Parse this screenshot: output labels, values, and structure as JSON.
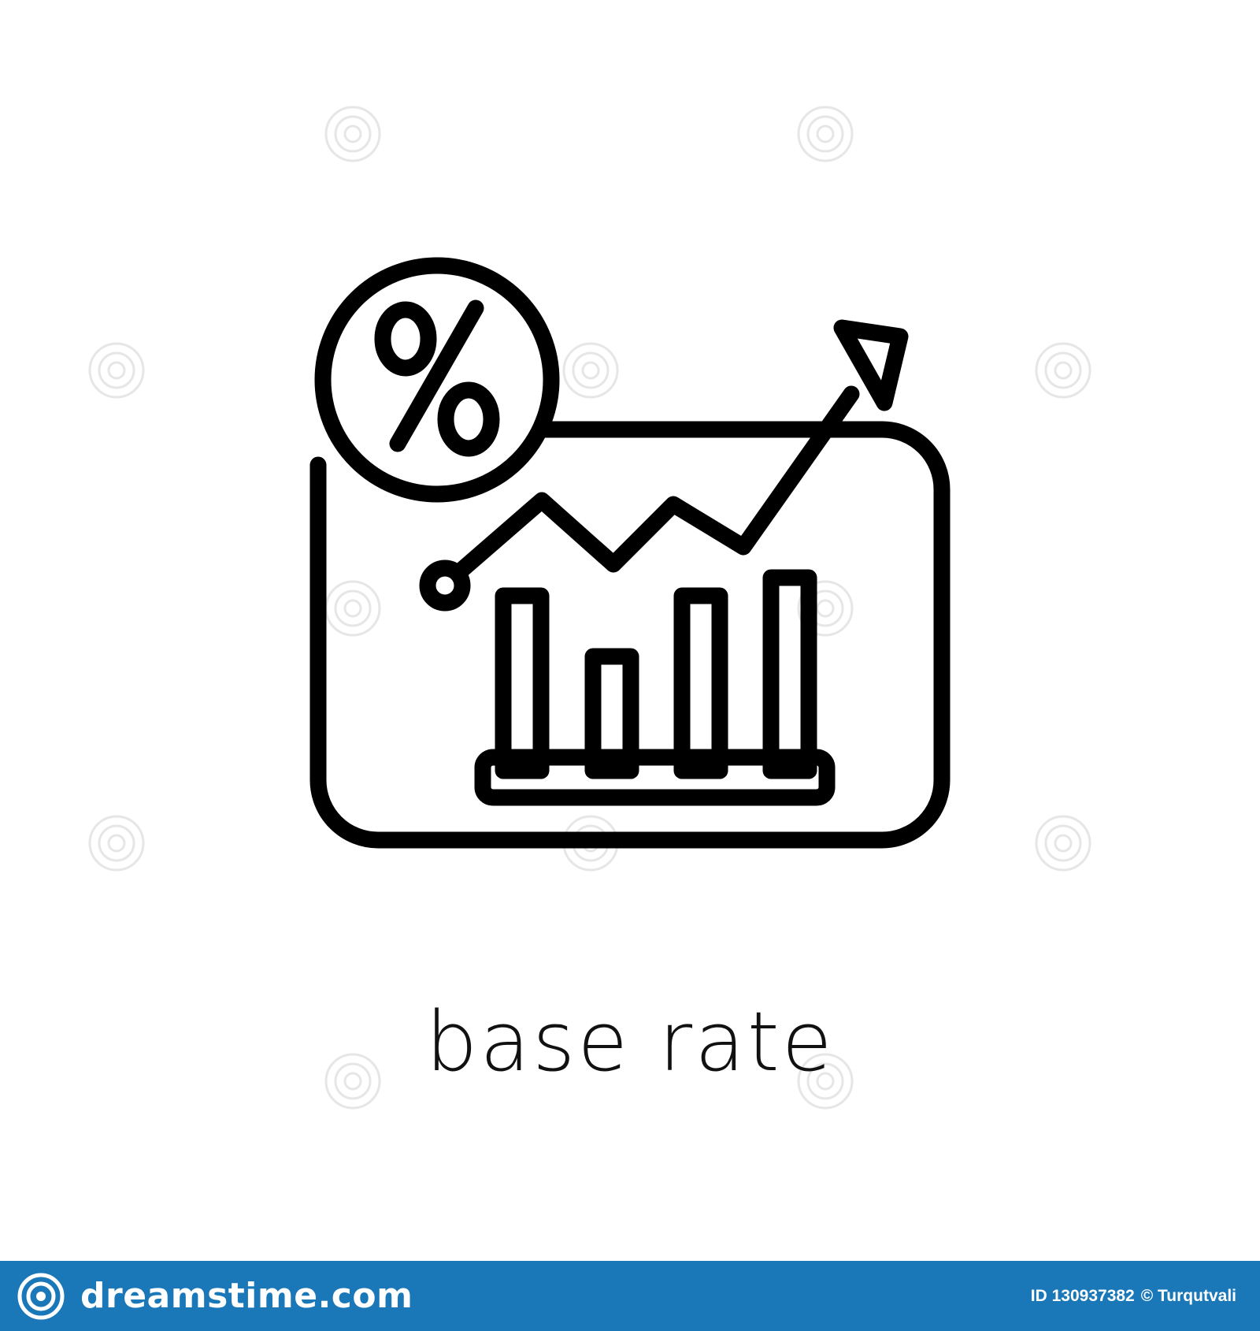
{
  "caption": "base rate",
  "footer": {
    "brand_name": "dreamstime.com",
    "brand_logo_icon": "spiral-logo-icon",
    "id_label": "ID 130937382",
    "copyright": "© Turqutvali",
    "background_color": "#1a78b8"
  },
  "icon": {
    "name": "base-rate-icon",
    "parts": [
      "percent-badge-icon",
      "chart-board-icon",
      "rising-arrow-icon",
      "bar-chart-icon"
    ],
    "stroke_color": "#000000",
    "percent_symbol": "%"
  },
  "watermark": {
    "icon": "dreamstime-watermark-icon",
    "color": "#e4e4e4"
  }
}
